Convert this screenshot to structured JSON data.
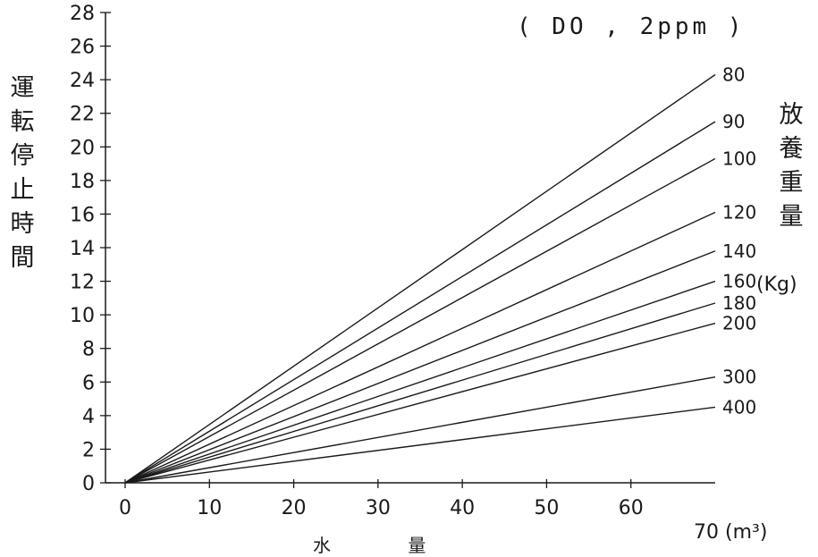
{
  "chart_data": {
    "type": "line",
    "title": "",
    "condition": "( DO , 2ppm )",
    "ylabel": "運転停止時間",
    "xlabel": "水 量",
    "xunit": "70 (m³)",
    "legend_title": "放養重量",
    "legend_unit": "(Kg)",
    "xlim": [
      0,
      70
    ],
    "ylim": [
      0,
      28
    ],
    "xticks": [
      "0",
      "10",
      "20",
      "30",
      "40",
      "50",
      "60"
    ],
    "yticks": [
      "0",
      "2",
      "4",
      "6",
      "8",
      "10",
      "12",
      "14",
      "16",
      "18",
      "20",
      "22",
      "24",
      "26",
      "28"
    ],
    "grid": false,
    "series": [
      {
        "name": "80",
        "x": [
          0,
          70
        ],
        "values": [
          0,
          24.3
        ]
      },
      {
        "name": "90",
        "x": [
          0,
          70
        ],
        "values": [
          0,
          21.5
        ]
      },
      {
        "name": "100",
        "x": [
          0,
          70
        ],
        "values": [
          0,
          19.3
        ]
      },
      {
        "name": "120",
        "x": [
          0,
          70
        ],
        "values": [
          0,
          16.1
        ]
      },
      {
        "name": "140",
        "x": [
          0,
          70
        ],
        "values": [
          0,
          13.8
        ]
      },
      {
        "name": "160",
        "x": [
          0,
          70
        ],
        "values": [
          0,
          12.0
        ]
      },
      {
        "name": "180",
        "x": [
          0,
          70
        ],
        "values": [
          0,
          10.7
        ]
      },
      {
        "name": "200",
        "x": [
          0,
          70
        ],
        "values": [
          0,
          9.5
        ]
      },
      {
        "name": "300",
        "x": [
          0,
          70
        ],
        "values": [
          0,
          6.3
        ]
      },
      {
        "name": "400",
        "x": [
          0,
          70
        ],
        "values": [
          0,
          4.5
        ]
      }
    ]
  },
  "colors": {
    "ink": "#1a1a1a",
    "background": "#ffffff"
  }
}
